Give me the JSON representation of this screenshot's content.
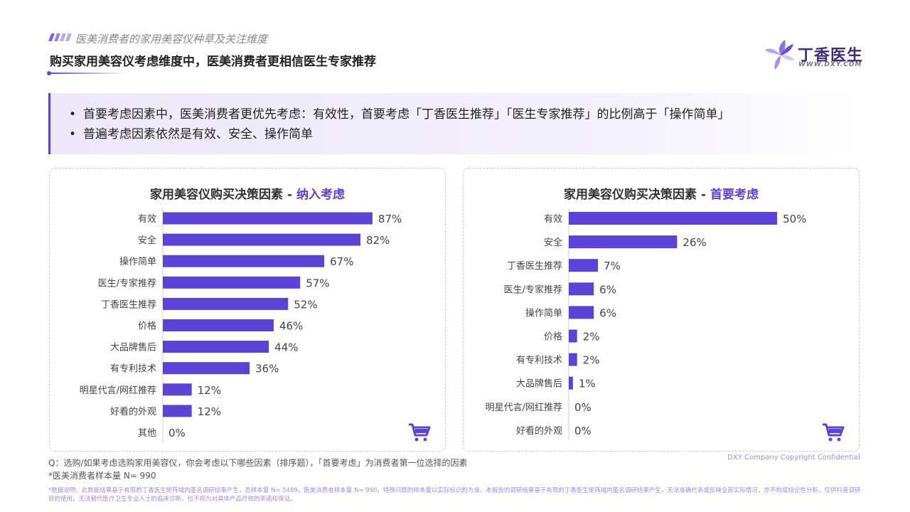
{
  "header": {
    "subtitle": "医美消费者的家用美容仪种草及关注维度",
    "title": "购买家用美容仪考虑维度中，医美消费者更相信医生专家推荐"
  },
  "logo": {
    "name": "丁香医生",
    "url_text": "WWW.DXY.COM"
  },
  "summary": [
    "首要考虑因素中，医美消费者更优先考虑：有效性，首要考虑「丁香医生推荐」「医生专家推荐」的比例高于「操作简单」",
    "普遍考虑因素依然是有效、安全、操作简单"
  ],
  "colors": {
    "bar": "#5b43d6",
    "accent": "#5b43d6"
  },
  "chart_data": [
    {
      "type": "bar",
      "orientation": "horizontal",
      "title_prefix": "家用美容仪购买决策因素 - ",
      "title_accent": "纳入考虑",
      "categories": [
        "有效",
        "安全",
        "操作简单",
        "医生/专家推荐",
        "丁香医生推荐",
        "价格",
        "大品牌售后",
        "有专利技术",
        "明星代言/网红推荐",
        "好看的外观",
        "其他"
      ],
      "values": [
        87,
        82,
        67,
        57,
        52,
        46,
        44,
        36,
        12,
        12,
        0
      ],
      "value_suffix": "%",
      "xlim": [
        0,
        100
      ]
    },
    {
      "type": "bar",
      "orientation": "horizontal",
      "title_prefix": "家用美容仪购买决策因素 - ",
      "title_accent": "首要考虑",
      "categories": [
        "有效",
        "安全",
        "丁香医生推荐",
        "医生/专家推荐",
        "操作简单",
        "价格",
        "有专利技术",
        "大品牌售后",
        "明星代言/网红推荐",
        "好看的外观"
      ],
      "values": [
        50,
        26,
        7,
        6,
        6,
        2,
        2,
        1,
        0,
        0
      ],
      "value_suffix": "%",
      "xlim": [
        0,
        58
      ]
    }
  ],
  "icons": {
    "cart": "shopping-cart-icon"
  },
  "footer": {
    "question": "Q：选购/如果考虑选购家用美容仪，你会考虑以下哪些因素（排序题），「首要考虑」为消费者第一位选择的因素",
    "sample": "*医美消费者样本量 N= 990",
    "copyright": "DXY Company Copyright Confidential",
    "data_note": "*数据说明：此数据结果基于有限的丁香医生矩阵域内匿名调研结果产生，总样本量 N= 5489，医美消费者样本量 N= 990，特殊问题的样本量以实际标识的为准。本报告的调研结果基于有限的丁香医生矩阵域内匿名调研结果产生，无法准确代表或反映全部实际情况，亦不构成结论性分析，仅供科普调研目的使用，无法替代医疗卫生专业人士的临床诊断，也不视为对具体产品疗效的承诺和保证。"
  }
}
